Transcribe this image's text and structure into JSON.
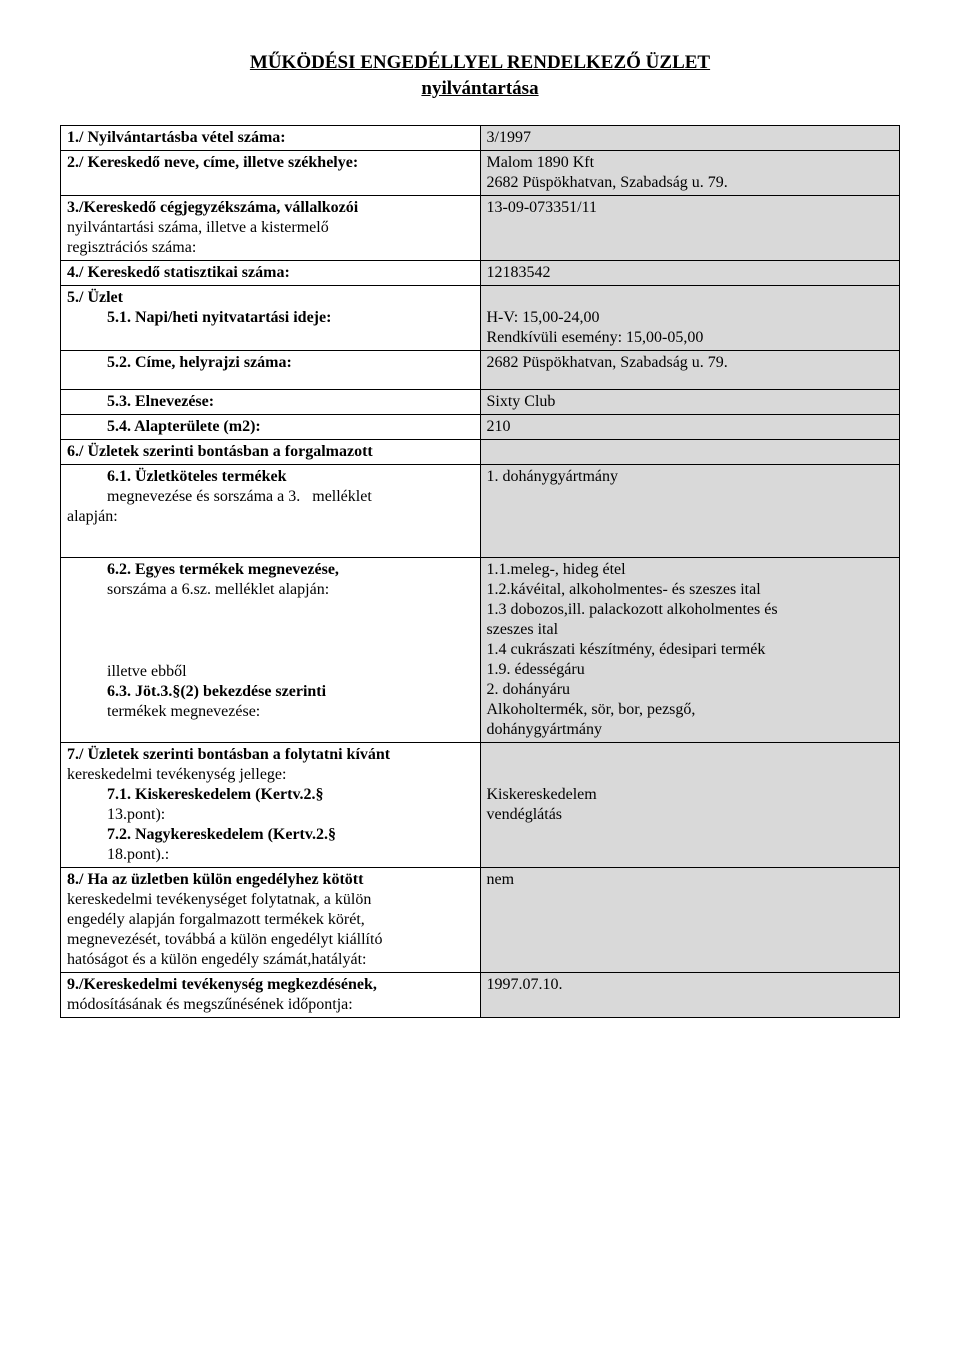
{
  "title_line1": "MŰKÖDÉSI ENGEDÉLLYEL RENDELKEZŐ ÜZLET",
  "title_line2": "nyilvántartása",
  "rows": {
    "r1_label": "1./ Nyilvántartásba vétel száma:",
    "r1_val": "3/1997",
    "r2_label": "2./ Kereskedő neve, címe, illetve székhelye:",
    "r2_val_l1": "Malom 1890 Kft",
    "r2_val_l2": "2682 Püspökhatvan, Szabadság u. 79.",
    "r3_label_l1": "3./Kereskedő cégjegyzékszáma, vállalkozói",
    "r3_label_l2": "nyilvántartási száma, illetve a kistermelő",
    "r3_label_l3": "regisztrációs száma:",
    "r3_val": "13-09-073351/11",
    "r4_label": "4./ Kereskedő statisztikai száma:",
    "r4_val": "12183542",
    "r5_label": "5./ Üzlet",
    "r51_label": "5.1. Napi/heti nyitvatartási ideje:",
    "r51_val_l1": "H-V: 15,00-24,00",
    "r51_val_l2": "Rendkívüli esemény: 15,00-05,00",
    "r52_label": "5.2. Címe, helyrajzi száma:",
    "r52_val": "2682 Püspökhatvan, Szabadság u. 79.",
    "r53_label": "5.3. Elnevezése:",
    "r53_val": "Sixty Club",
    "r54_label": "5.4. Alapterülete (m2):",
    "r54_val": "210",
    "r6_label": "6./ Üzletek szerinti bontásban a forgalmazott",
    "r61_label_l1": "6.1. Üzletköteles termékek",
    "r61_label_l2": "megnevezése és sorszáma a 3.   melléklet",
    "r61_label_l3": "alapján:",
    "r61_val": "1. dohánygyártmány",
    "r62_label_l1": "6.2. Egyes termékek megnevezése,",
    "r62_label_l2": "sorszáma a 6.sz. melléklet alapján:",
    "r62_val_l1": "1.1.meleg-, hideg étel",
    "r62_val_l2": "1.2.kávéital, alkoholmentes- és szeszes ital",
    "r62_val_l3": "1.3 dobozos,ill. palackozott alkoholmentes és",
    "r62_val_l4": "szeszes ital",
    "r62_val_l5": "1.4 cukrászati készítmény, édesipari termék",
    "r62_val_l6": "1.9. édességáru",
    "r62_val_l7": "2. dohányáru",
    "r63_label_l1": "illetve ebből",
    "r63_label_l2": "6.3. Jöt.3.§(2) bekezdése szerinti",
    "r63_label_l3": "termékek megnevezése:",
    "r63_val_l1": "Alkoholtermék, sör, bor, pezsgő,",
    "r63_val_l2": "dohánygyártmány",
    "r7_label_l1": "7./ Üzletek szerinti bontásban a folytatni kívánt",
    "r7_label_l2": "kereskedelmi tevékenység jellege:",
    "r71_label_l1": "7.1. Kiskereskedelem (Kertv.2.§",
    "r71_label_l2": "13.pont):",
    "r71_val_l1": "Kiskereskedelem",
    "r71_val_l2": "vendéglátás",
    "r72_label_l1": "7.2. Nagykereskedelem (Kertv.2.§",
    "r72_label_l2": "18.pont).:",
    "r8_label_l1": "8./ Ha az üzletben külön engedélyhez kötött",
    "r8_label_l2": "kereskedelmi tevékenységet folytatnak, a külön",
    "r8_label_l3": "engedély alapján forgalmazott termékek körét,",
    "r8_label_l4": "megnevezését, továbbá a külön engedélyt kiállító",
    "r8_label_l5": "hatóságot és a külön engedély számát,hatályát:",
    "r8_val": "nem",
    "r9_label_l1": "9./Kereskedelmi tevékenység megkezdésének,",
    "r9_label_l2": "módosításának és megszűnésének időpontja:",
    "r9_val": "1997.07.10."
  }
}
